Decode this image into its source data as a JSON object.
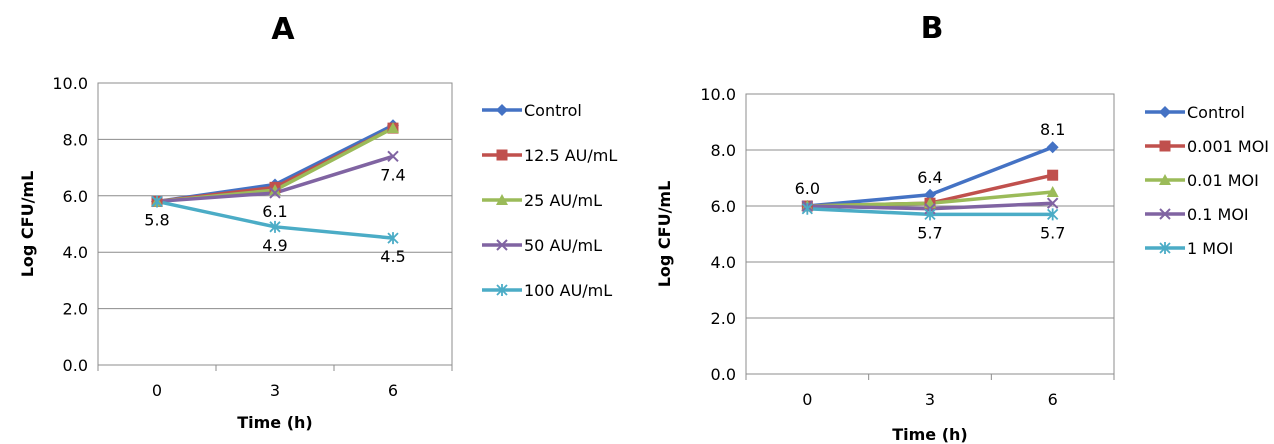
{
  "chart_data": [
    {
      "type": "line",
      "title": "A",
      "xlabel": "Time (h)",
      "ylabel": "Log CFU/mL",
      "categories": [
        "0",
        "3",
        "6"
      ],
      "ylim": [
        0,
        10
      ],
      "yticks": [
        "0.0",
        "2.0",
        "4.0",
        "6.0",
        "8.0",
        "10.0"
      ],
      "grid": true,
      "legend_position": "right",
      "series": [
        {
          "name": "Control",
          "values": [
            5.8,
            6.4,
            8.5
          ],
          "color": "#4472C4",
          "marker": "diamond"
        },
        {
          "name": "12.5 AU/mL",
          "values": [
            5.8,
            6.3,
            8.4
          ],
          "color": "#C0504D",
          "marker": "square"
        },
        {
          "name": "25 AU/mL",
          "values": [
            5.8,
            6.2,
            8.4
          ],
          "color": "#9BBB59",
          "marker": "triangle"
        },
        {
          "name": "50 AU/mL",
          "values": [
            5.8,
            6.1,
            7.4
          ],
          "color": "#8064A2",
          "marker": "x"
        },
        {
          "name": "100 AU/mL",
          "values": [
            5.8,
            4.9,
            4.5
          ],
          "color": "#4BACC6",
          "marker": "star"
        }
      ],
      "data_labels": [
        {
          "x": "0",
          "y": 5.8,
          "text": "5.8",
          "pos": "below"
        },
        {
          "x": "3",
          "y": 6.1,
          "text": "6.1",
          "pos": "below"
        },
        {
          "x": "6",
          "y": 7.4,
          "text": "7.4",
          "pos": "below"
        },
        {
          "x": "3",
          "y": 4.9,
          "text": "4.9",
          "pos": "below"
        },
        {
          "x": "6",
          "y": 4.5,
          "text": "4.5",
          "pos": "below"
        }
      ]
    },
    {
      "type": "line",
      "title": "B",
      "xlabel": "Time (h)",
      "ylabel": "Log CFU/mL",
      "categories": [
        "0",
        "3",
        "6"
      ],
      "ylim": [
        0,
        10
      ],
      "yticks": [
        "0.0",
        "2.0",
        "4.0",
        "6.0",
        "8.0",
        "10.0"
      ],
      "grid": true,
      "legend_position": "right",
      "series": [
        {
          "name": "Control",
          "values": [
            6.0,
            6.4,
            8.1
          ],
          "color": "#4472C4",
          "marker": "diamond"
        },
        {
          "name": "0.001 MOI",
          "values": [
            6.0,
            6.1,
            7.1
          ],
          "color": "#C0504D",
          "marker": "square"
        },
        {
          "name": "0.01 MOI",
          "values": [
            6.0,
            6.1,
            6.5
          ],
          "color": "#9BBB59",
          "marker": "triangle"
        },
        {
          "name": "0.1 MOI",
          "values": [
            6.0,
            5.9,
            6.1
          ],
          "color": "#8064A2",
          "marker": "x"
        },
        {
          "name": "1 MOI",
          "values": [
            5.9,
            5.7,
            5.7
          ],
          "color": "#4BACC6",
          "marker": "star"
        }
      ],
      "data_labels": [
        {
          "x": "0",
          "y": 6.0,
          "text": "6.0",
          "pos": "above"
        },
        {
          "x": "3",
          "y": 6.4,
          "text": "6.4",
          "pos": "above"
        },
        {
          "x": "6",
          "y": 8.1,
          "text": "8.1",
          "pos": "above"
        },
        {
          "x": "3",
          "y": 5.7,
          "text": "5.7",
          "pos": "below"
        },
        {
          "x": "6",
          "y": 5.7,
          "text": "5.7",
          "pos": "below"
        }
      ]
    }
  ]
}
